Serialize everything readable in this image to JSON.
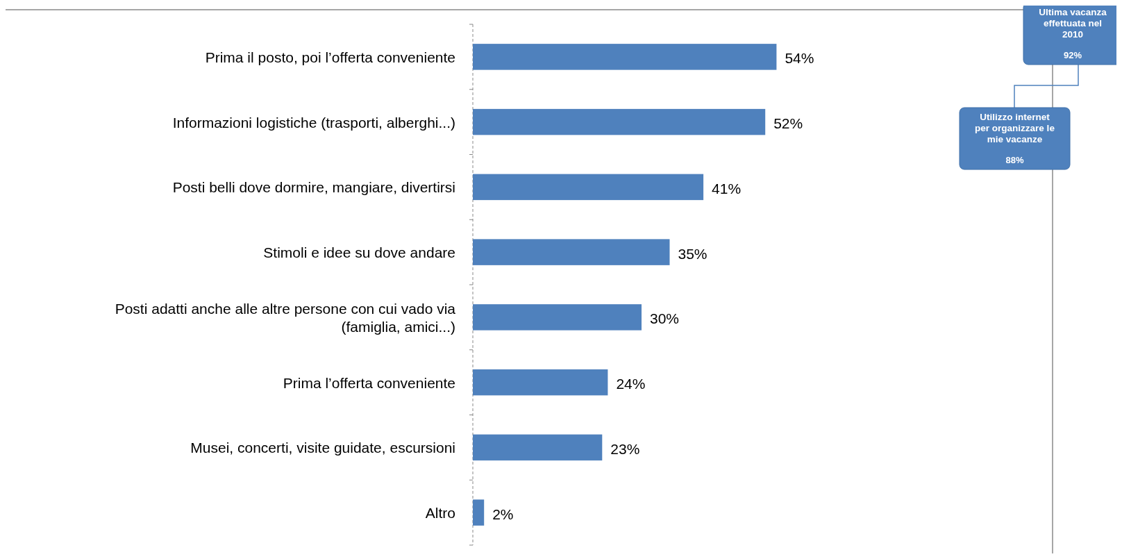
{
  "chart_data": {
    "type": "bar",
    "orientation": "horizontal",
    "categories": [
      "Prima il posto, poi l’offerta conveniente",
      "Informazioni logistiche (trasporti, alberghi...)",
      "Posti belli dove dormire, mangiare, divertirsi",
      "Stimoli e idee su dove andare",
      "Posti adatti anche alle altre persone con cui vado via (famiglia, amici...)",
      "Prima l’offerta conveniente",
      "Musei, concerti, visite guidate, escursioni",
      "Altro"
    ],
    "values": [
      54,
      52,
      41,
      35,
      30,
      24,
      23,
      2
    ],
    "value_labels": [
      "54%",
      "52%",
      "41%",
      "35%",
      "30%",
      "24%",
      "23%",
      "2%"
    ],
    "color": "#4f81bd",
    "annotations": [
      "Ultima vacanza effettuata nel 2010",
      "92%",
      "Utilizzo internet per organizzare le mie vacanze",
      "88%"
    ]
  }
}
